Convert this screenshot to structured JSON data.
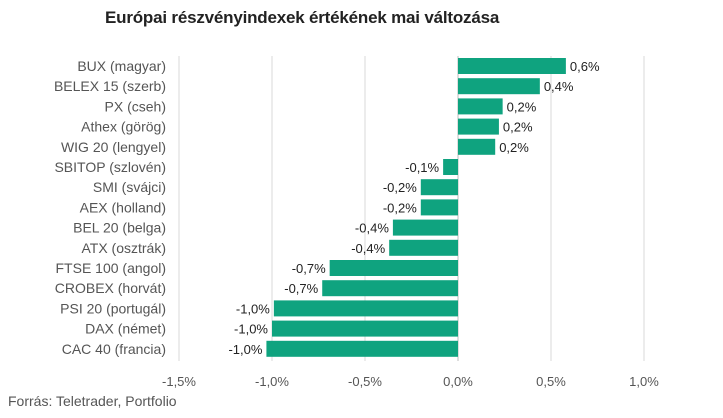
{
  "title": "Európai részvényindexek értékének mai változása",
  "source": "Forrás: Teletrader, Portfolio",
  "colors": {
    "bar": "#0fa37f",
    "grid": "#d9d9d9",
    "zero_line": "#bdbdbd"
  },
  "chart_data": {
    "type": "bar",
    "orientation": "horizontal",
    "title": "Európai részvényindexek értékének mai változása",
    "categories": [
      "BUX (magyar)",
      "BELEX 15 (szerb)",
      "PX (cseh)",
      "Athex (görög)",
      "WIG 20 (lengyel)",
      "SBITOP (szlovén)",
      "SMI (svájci)",
      "AEX (holland)",
      "BEL 20 (belga)",
      "ATX (osztrák)",
      "FTSE 100 (angol)",
      "CROBEX (horvát)",
      "PSI 20 (portugál)",
      "DAX (német)",
      "CAC 40 (francia)"
    ],
    "values": [
      0.58,
      0.44,
      0.24,
      0.22,
      0.2,
      -0.08,
      -0.2,
      -0.2,
      -0.35,
      -0.37,
      -0.69,
      -0.73,
      -0.99,
      -1.0,
      -1.03
    ],
    "value_labels": [
      "0,6%",
      "0,4%",
      "0,2%",
      "0,2%",
      "0,2%",
      "-0,1%",
      "-0,2%",
      "-0,2%",
      "-0,4%",
      "-0,4%",
      "-0,7%",
      "-0,7%",
      "-1,0%",
      "-1,0%",
      "-1,0%"
    ],
    "xlim": [
      -1.5,
      1.0
    ],
    "xticks": [
      -1.5,
      -1.0,
      -0.5,
      0.0,
      0.5,
      1.0
    ],
    "xtick_labels": [
      "-1,5%",
      "-1,0%",
      "-0,5%",
      "0,0%",
      "0,5%",
      "1,0%"
    ],
    "xlabel": "",
    "ylabel": "",
    "grid": true,
    "legend": "none"
  }
}
